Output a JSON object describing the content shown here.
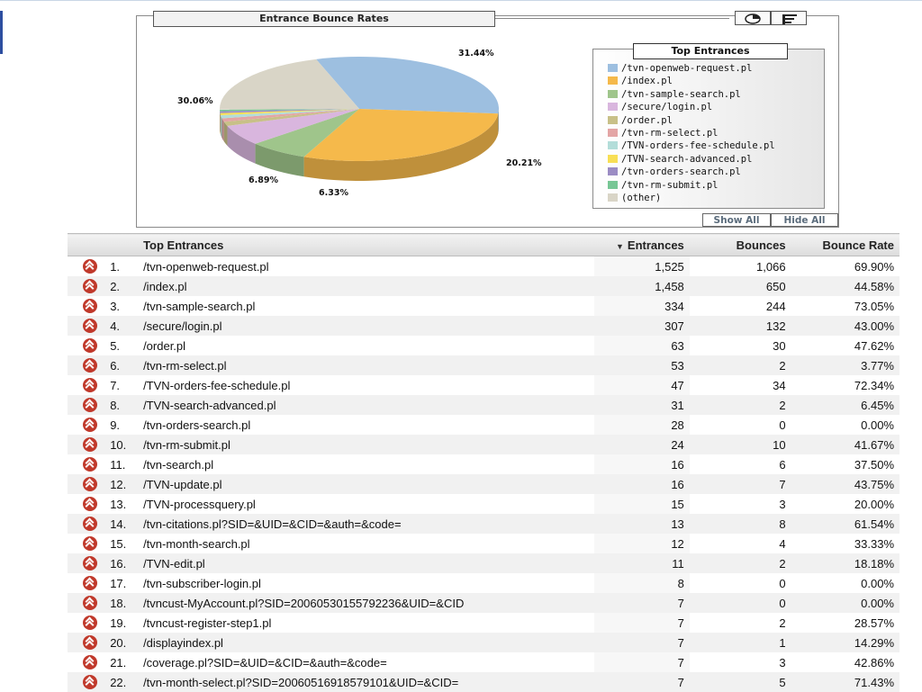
{
  "chart_panel": {
    "title": "Entrance Bounce Rates",
    "legend_title": "Top Entrances",
    "show_all_label": "Show All",
    "hide_all_label": "Hide All",
    "toolbar_icons": [
      "pie-chart-icon",
      "legend-list-icon"
    ]
  },
  "chart_data": {
    "type": "pie",
    "title": "Entrance Bounce Rates",
    "legend_title": "Top Entrances",
    "legend_placement": "right",
    "labels": [
      "/tvn-openweb-request.pl",
      "/index.pl",
      "/tvn-sample-search.pl",
      "/secure/login.pl",
      "/order.pl",
      "/tvn-rm-select.pl",
      "/TVN-orders-fee-schedule.pl",
      "/TVN-search-advanced.pl",
      "/tvn-orders-search.pl",
      "/tvn-rm-submit.pl",
      "(other)"
    ],
    "values": [
      31.44,
      30.06,
      6.89,
      6.33,
      1.31,
      1.1,
      0.97,
      0.64,
      0.58,
      0.5,
      20.21
    ],
    "colors": [
      "#9dbfe0",
      "#f5b94b",
      "#9fc58b",
      "#d9b6de",
      "#c8c088",
      "#e3a5a5",
      "#b3ddd9",
      "#f8df55",
      "#9b8cc4",
      "#77c795",
      "#d9d5c7"
    ],
    "shown_percent_labels": [
      "31.44%",
      "30.06%",
      "6.89%",
      "6.33%",
      "20.21%"
    ]
  },
  "table": {
    "headers": {
      "name": "Top Entrances",
      "entrances": "Entrances",
      "bounces": "Bounces",
      "rate": "Bounce Rate"
    },
    "sort_column": "entrances",
    "rows": [
      {
        "num": "1.",
        "name": "/tvn-openweb-request.pl",
        "entrances": "1,525",
        "bounces": "1,066",
        "rate": "69.90%"
      },
      {
        "num": "2.",
        "name": "/index.pl",
        "entrances": "1,458",
        "bounces": "650",
        "rate": "44.58%"
      },
      {
        "num": "3.",
        "name": "/tvn-sample-search.pl",
        "entrances": "334",
        "bounces": "244",
        "rate": "73.05%"
      },
      {
        "num": "4.",
        "name": "/secure/login.pl",
        "entrances": "307",
        "bounces": "132",
        "rate": "43.00%"
      },
      {
        "num": "5.",
        "name": "/order.pl",
        "entrances": "63",
        "bounces": "30",
        "rate": "47.62%"
      },
      {
        "num": "6.",
        "name": "/tvn-rm-select.pl",
        "entrances": "53",
        "bounces": "2",
        "rate": "3.77%"
      },
      {
        "num": "7.",
        "name": "/TVN-orders-fee-schedule.pl",
        "entrances": "47",
        "bounces": "34",
        "rate": "72.34%"
      },
      {
        "num": "8.",
        "name": "/TVN-search-advanced.pl",
        "entrances": "31",
        "bounces": "2",
        "rate": "6.45%"
      },
      {
        "num": "9.",
        "name": "/tvn-orders-search.pl",
        "entrances": "28",
        "bounces": "0",
        "rate": "0.00%"
      },
      {
        "num": "10.",
        "name": "/tvn-rm-submit.pl",
        "entrances": "24",
        "bounces": "10",
        "rate": "41.67%"
      },
      {
        "num": "11.",
        "name": "/tvn-search.pl",
        "entrances": "16",
        "bounces": "6",
        "rate": "37.50%"
      },
      {
        "num": "12.",
        "name": "/TVN-update.pl",
        "entrances": "16",
        "bounces": "7",
        "rate": "43.75%"
      },
      {
        "num": "13.",
        "name": "/TVN-processquery.pl",
        "entrances": "15",
        "bounces": "3",
        "rate": "20.00%"
      },
      {
        "num": "14.",
        "name": "/tvn-citations.pl?SID=&UID=&CID=&auth=&code=",
        "entrances": "13",
        "bounces": "8",
        "rate": "61.54%"
      },
      {
        "num": "15.",
        "name": "/tvn-month-search.pl",
        "entrances": "12",
        "bounces": "4",
        "rate": "33.33%"
      },
      {
        "num": "16.",
        "name": "/TVN-edit.pl",
        "entrances": "11",
        "bounces": "2",
        "rate": "18.18%"
      },
      {
        "num": "17.",
        "name": "/tvn-subscriber-login.pl",
        "entrances": "8",
        "bounces": "0",
        "rate": "0.00%"
      },
      {
        "num": "18.",
        "name": "/tvncust-MyAccount.pl?SID=20060530155792236&UID=&CID",
        "entrances": "7",
        "bounces": "0",
        "rate": "0.00%"
      },
      {
        "num": "19.",
        "name": "/tvncust-register-step1.pl",
        "entrances": "7",
        "bounces": "2",
        "rate": "28.57%"
      },
      {
        "num": "20.",
        "name": "/displayindex.pl",
        "entrances": "7",
        "bounces": "1",
        "rate": "14.29%"
      },
      {
        "num": "21.",
        "name": "/coverage.pl?SID=&UID=&CID=&auth=&code=",
        "entrances": "7",
        "bounces": "3",
        "rate": "42.86%"
      },
      {
        "num": "22.",
        "name": "/tvn-month-select.pl?SID=20060516918579101&UID=&CID=",
        "entrances": "7",
        "bounces": "5",
        "rate": "71.43%"
      }
    ]
  }
}
